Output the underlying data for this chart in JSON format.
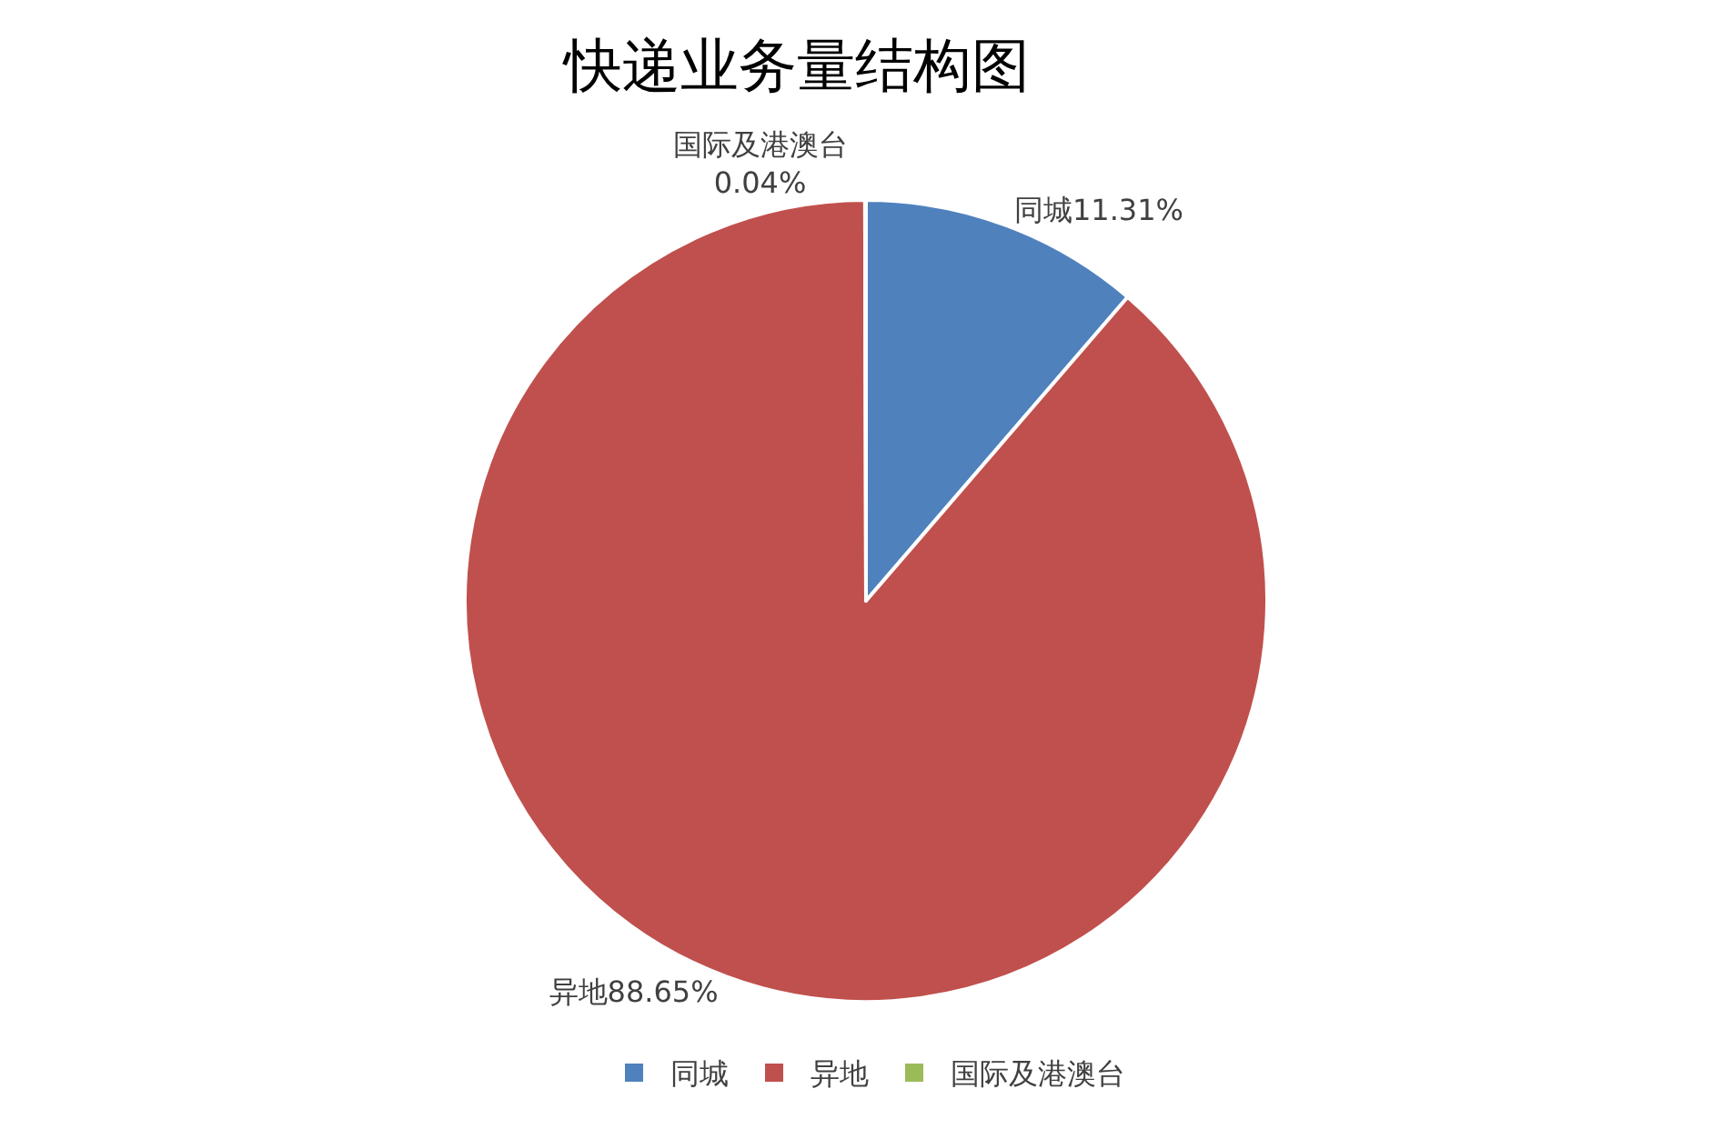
{
  "chart_data": {
    "type": "pie",
    "title": "快递业务量结构图",
    "categories": [
      "同城",
      "异地",
      "国际及港澳台"
    ],
    "values": [
      11.31,
      88.65,
      0.04
    ],
    "colors": [
      "#4f81bd",
      "#c0504d",
      "#9bbb59"
    ],
    "value_labels": [
      "同城11.31%",
      "异地88.65%",
      "国际及港澳台\n0.04%"
    ],
    "legend": "bottom"
  }
}
